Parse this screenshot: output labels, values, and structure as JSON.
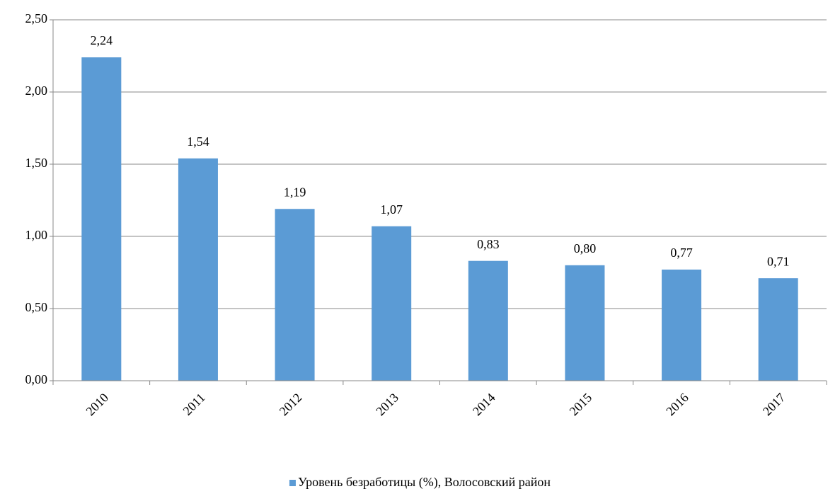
{
  "chart_data": {
    "type": "bar",
    "categories": [
      "2010",
      "2011",
      "2012",
      "2013",
      "2014",
      "2015",
      "2016",
      "2017"
    ],
    "series": [
      {
        "name": "Уровень безработицы (%), Волосовский район",
        "color": "#5b9bd5",
        "values": [
          2.24,
          1.54,
          1.19,
          1.07,
          0.83,
          0.8,
          0.77,
          0.71
        ],
        "value_labels": [
          "2,24",
          "1,54",
          "1,19",
          "1,07",
          "0,83",
          "0,80",
          "0,77",
          "0,71"
        ]
      }
    ],
    "ylim": [
      0,
      2.5
    ],
    "yticks": [
      {
        "value": 0,
        "label": "0,00"
      },
      {
        "value": 0.5,
        "label": "0,50"
      },
      {
        "value": 1,
        "label": "1,00"
      },
      {
        "value": 1.5,
        "label": "1,50"
      },
      {
        "value": 2,
        "label": "2,00"
      },
      {
        "value": 2.5,
        "label": "2,50"
      }
    ],
    "grid": true,
    "legend": "bottom"
  }
}
